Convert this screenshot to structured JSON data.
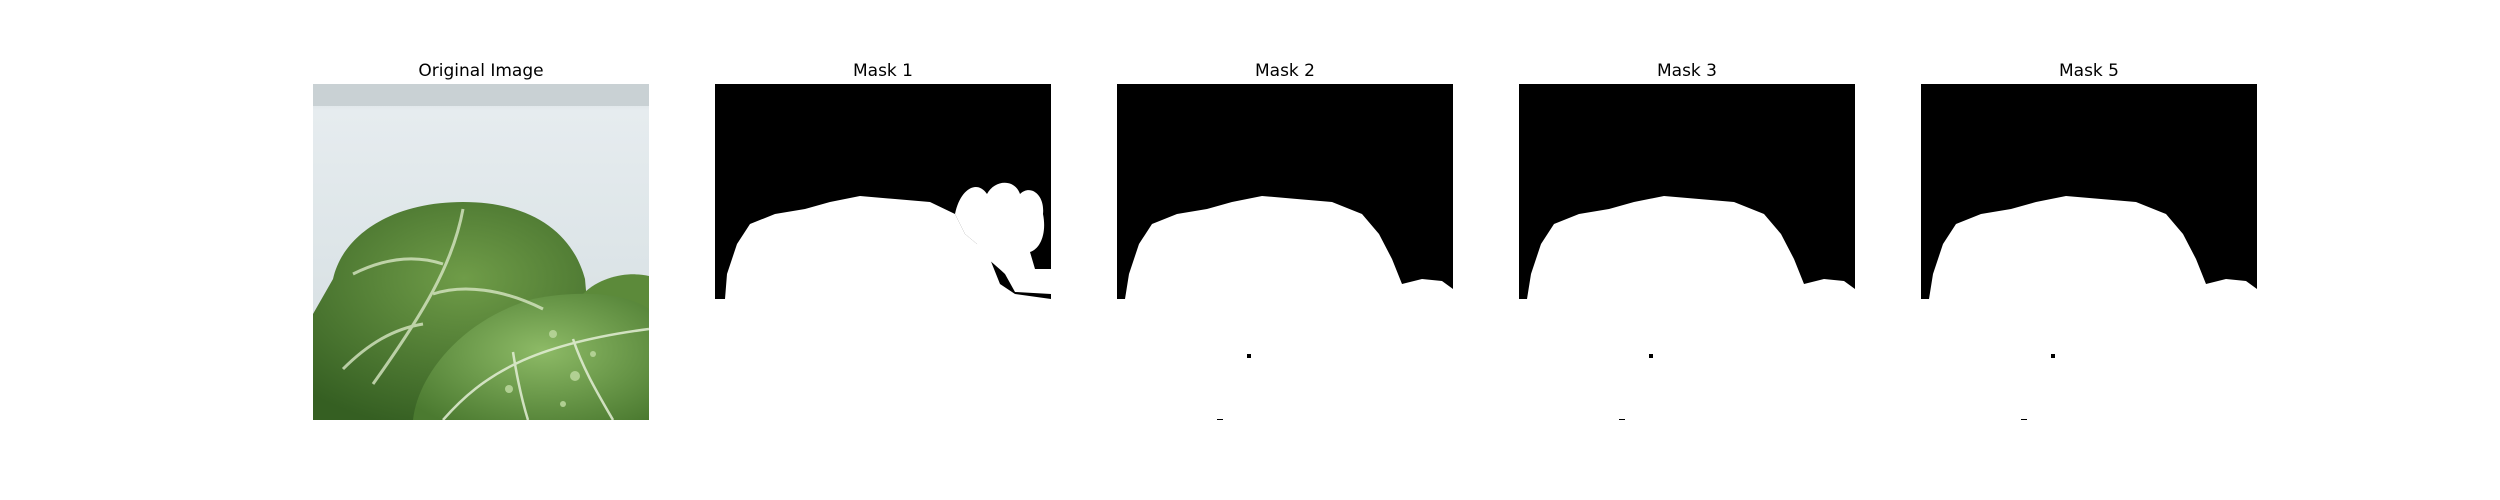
{
  "figure": {
    "panels": [
      {
        "title": "Original Image",
        "kind": "photo",
        "subject": "green-leaves-photo"
      },
      {
        "title": "Mask 1",
        "kind": "mask"
      },
      {
        "title": "Mask 2",
        "kind": "mask"
      },
      {
        "title": "Mask 3",
        "kind": "mask"
      },
      {
        "title": "Mask 5",
        "kind": "mask"
      }
    ]
  },
  "colors": {
    "background": "#ffffff",
    "mask_foreground": "#ffffff",
    "mask_background": "#000000",
    "leaf_dark": "#3f6b2a",
    "leaf_mid": "#5f8f3c",
    "leaf_light": "#8fb86a",
    "backdrop": "#dfe6e9"
  }
}
